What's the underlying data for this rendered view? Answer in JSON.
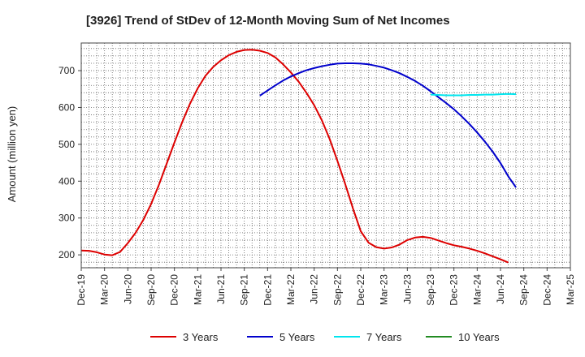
{
  "chart_data": {
    "type": "line",
    "title": "[3926]  Trend of StDev of 12-Month Moving Sum of Net Incomes",
    "xlabel": "",
    "ylabel": "Amount (million yen)",
    "ylim": [
      165,
      775
    ],
    "xlim": [
      "2019-12",
      "2025-03"
    ],
    "yticks": [
      200,
      300,
      400,
      500,
      600,
      700
    ],
    "xticks": [
      "Dec-19",
      "Mar-20",
      "Jun-20",
      "Sep-20",
      "Dec-20",
      "Mar-21",
      "Jun-21",
      "Sep-21",
      "Dec-21",
      "Mar-22",
      "Jun-22",
      "Sep-22",
      "Dec-22",
      "Mar-23",
      "Jun-23",
      "Sep-23",
      "Dec-23",
      "Mar-24",
      "Jun-24",
      "Sep-24",
      "Dec-24",
      "Mar-25"
    ],
    "grid": true,
    "legend_position": "bottom",
    "series": [
      {
        "name": "3 Years",
        "color": "#dd0000",
        "points": [
          [
            "2019-12",
            212
          ],
          [
            "2020-01",
            211
          ],
          [
            "2020-02",
            207
          ],
          [
            "2020-03",
            201
          ],
          [
            "2020-04",
            199
          ],
          [
            "2020-05",
            208
          ],
          [
            "2020-06",
            232
          ],
          [
            "2020-07",
            260
          ],
          [
            "2020-08",
            295
          ],
          [
            "2020-09",
            338
          ],
          [
            "2020-10",
            390
          ],
          [
            "2020-11",
            447
          ],
          [
            "2020-12",
            505
          ],
          [
            "2021-01",
            560
          ],
          [
            "2021-02",
            610
          ],
          [
            "2021-03",
            652
          ],
          [
            "2021-04",
            686
          ],
          [
            "2021-05",
            710
          ],
          [
            "2021-06",
            728
          ],
          [
            "2021-07",
            742
          ],
          [
            "2021-08",
            751
          ],
          [
            "2021-09",
            756
          ],
          [
            "2021-10",
            757
          ],
          [
            "2021-11",
            754
          ],
          [
            "2021-12",
            748
          ],
          [
            "2022-01",
            736
          ],
          [
            "2022-02",
            717
          ],
          [
            "2022-03",
            695
          ],
          [
            "2022-04",
            670
          ],
          [
            "2022-05",
            640
          ],
          [
            "2022-06",
            606
          ],
          [
            "2022-07",
            565
          ],
          [
            "2022-08",
            514
          ],
          [
            "2022-09",
            455
          ],
          [
            "2022-10",
            392
          ],
          [
            "2022-11",
            326
          ],
          [
            "2022-12",
            264
          ],
          [
            "2023-01",
            233
          ],
          [
            "2023-02",
            221
          ],
          [
            "2023-03",
            217
          ],
          [
            "2023-04",
            220
          ],
          [
            "2023-05",
            228
          ],
          [
            "2023-06",
            240
          ],
          [
            "2023-07",
            247
          ],
          [
            "2023-08",
            249
          ],
          [
            "2023-09",
            246
          ],
          [
            "2023-10",
            239
          ],
          [
            "2023-11",
            232
          ],
          [
            "2023-12",
            226
          ],
          [
            "2024-01",
            222
          ],
          [
            "2024-02",
            217
          ],
          [
            "2024-03",
            211
          ],
          [
            "2024-04",
            204
          ],
          [
            "2024-05",
            196
          ],
          [
            "2024-06",
            188
          ],
          [
            "2024-07",
            179
          ]
        ]
      },
      {
        "name": "5 Years",
        "color": "#0000cc",
        "points": [
          [
            "2021-11",
            632
          ],
          [
            "2021-12",
            646
          ],
          [
            "2022-01",
            660
          ],
          [
            "2022-02",
            673
          ],
          [
            "2022-03",
            684
          ],
          [
            "2022-04",
            693
          ],
          [
            "2022-05",
            701
          ],
          [
            "2022-06",
            707
          ],
          [
            "2022-07",
            712
          ],
          [
            "2022-08",
            716
          ],
          [
            "2022-09",
            719
          ],
          [
            "2022-10",
            720
          ],
          [
            "2022-11",
            720
          ],
          [
            "2022-12",
            719
          ],
          [
            "2023-01",
            717
          ],
          [
            "2023-02",
            713
          ],
          [
            "2023-03",
            708
          ],
          [
            "2023-04",
            701
          ],
          [
            "2023-05",
            693
          ],
          [
            "2023-06",
            683
          ],
          [
            "2023-07",
            672
          ],
          [
            "2023-08",
            659
          ],
          [
            "2023-09",
            644
          ],
          [
            "2023-10",
            628
          ],
          [
            "2023-11",
            612
          ],
          [
            "2023-12",
            595
          ],
          [
            "2024-01",
            576
          ],
          [
            "2024-02",
            555
          ],
          [
            "2024-03",
            532
          ],
          [
            "2024-04",
            507
          ],
          [
            "2024-05",
            480
          ],
          [
            "2024-06",
            449
          ],
          [
            "2024-07",
            413
          ],
          [
            "2024-08",
            383
          ]
        ]
      },
      {
        "name": "7 Years",
        "color": "#00e5ee",
        "points": [
          [
            "2023-09",
            635
          ],
          [
            "2023-10",
            634
          ],
          [
            "2023-11",
            633
          ],
          [
            "2023-12",
            633
          ],
          [
            "2024-01",
            633
          ],
          [
            "2024-02",
            634
          ],
          [
            "2024-03",
            634
          ],
          [
            "2024-04",
            635
          ],
          [
            "2024-05",
            635
          ],
          [
            "2024-06",
            636
          ],
          [
            "2024-07",
            637
          ],
          [
            "2024-08",
            636
          ]
        ]
      },
      {
        "name": "10 Years",
        "color": "#228b22",
        "points": []
      }
    ]
  }
}
